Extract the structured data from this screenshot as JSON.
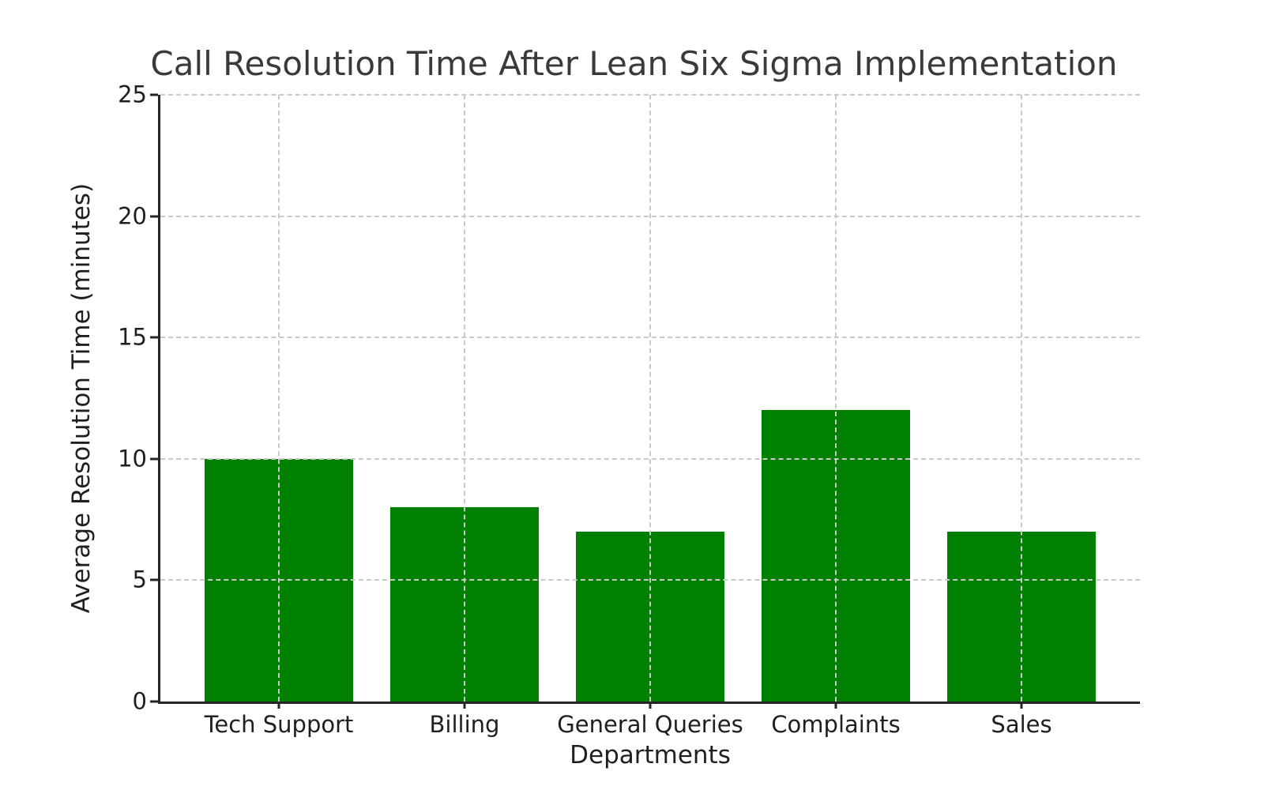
{
  "chart_data": {
    "type": "bar",
    "title": "Call Resolution Time After Lean Six Sigma Implementation",
    "xlabel": "Departments",
    "ylabel": "Average Resolution Time (minutes)",
    "categories": [
      "Tech Support",
      "Billing",
      "General Queries",
      "Complaints",
      "Sales"
    ],
    "values": [
      10,
      8,
      7,
      12,
      7
    ],
    "ylim": [
      0,
      25
    ],
    "yticks": [
      0,
      5,
      10,
      15,
      20,
      25
    ],
    "bar_color": "#008000",
    "grid": true,
    "grid_line_style": "dashed",
    "grid_color": "#c9c9c9",
    "axis_color": "#262626",
    "text_color": "#1f1f1f",
    "grid_above_bars": true,
    "legend": "none"
  }
}
